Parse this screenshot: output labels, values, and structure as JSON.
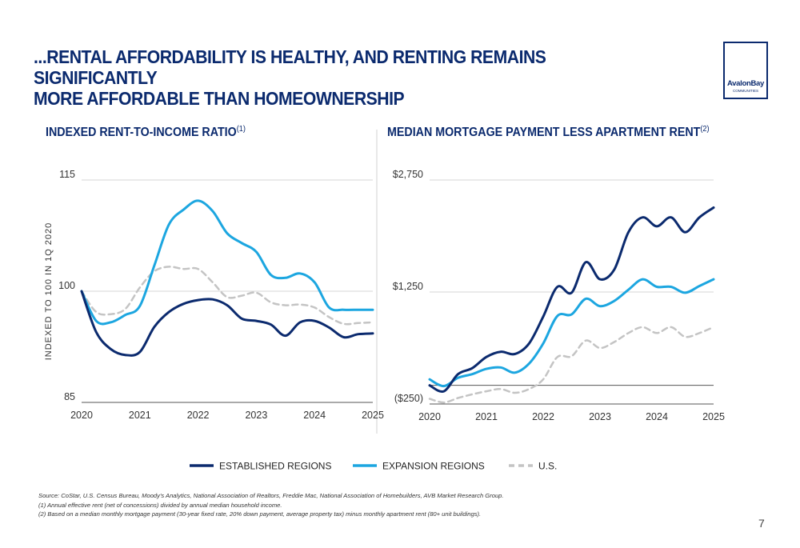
{
  "title_line1": "...RENTAL AFFORDABILITY IS HEALTHY, AND RENTING REMAINS SIGNIFICANTLY",
  "title_line2": "MORE AFFORDABLE THAN HOMEOWNERSHIP",
  "logo": {
    "name": "AvalonBay",
    "sub": "COMMUNITIES"
  },
  "legend": [
    {
      "label": "ESTABLISHED REGIONS",
      "color": "#0b2a6e",
      "dash": false
    },
    {
      "label": "EXPANSION REGIONS",
      "color": "#1ca6e0",
      "dash": false
    },
    {
      "label": "U.S.",
      "color": "#c4c4c4",
      "dash": true
    }
  ],
  "chart_data": [
    {
      "type": "line",
      "title": "INDEXED RENT-TO-INCOME RATIO",
      "title_note": "(1)",
      "ylabel": "INDEXED TO 100 IN 1Q 2020",
      "ylim": [
        85,
        115
      ],
      "yticks": [
        "85",
        "100",
        "115"
      ],
      "xlim": [
        2020,
        2025
      ],
      "xticks": [
        "2020",
        "2021",
        "2022",
        "2023",
        "2024",
        "2025"
      ],
      "grid": "horizontal",
      "series": [
        {
          "name": "ESTABLISHED REGIONS",
          "color": "#0b2a6e",
          "dash": false,
          "x": [
            2020,
            2020.25,
            2020.5,
            2020.75,
            2021,
            2021.25,
            2021.5,
            2021.75,
            2022,
            2022.25,
            2022.5,
            2022.75,
            2023,
            2023.25,
            2023.5,
            2023.75,
            2024,
            2024.25,
            2024.5,
            2024.75,
            2025
          ],
          "y": [
            100,
            94.5,
            92.2,
            91.4,
            91.8,
            95.2,
            97.2,
            98.3,
            98.8,
            98.9,
            98.1,
            96.3,
            96.0,
            95.5,
            94.0,
            95.8,
            96.0,
            95.1,
            93.8,
            94.2,
            94.3
          ]
        },
        {
          "name": "EXPANSION REGIONS",
          "color": "#1ca6e0",
          "dash": false,
          "x": [
            2020,
            2020.25,
            2020.5,
            2020.75,
            2021,
            2021.25,
            2021.5,
            2021.75,
            2022,
            2022.25,
            2022.5,
            2022.75,
            2023,
            2023.25,
            2023.5,
            2023.75,
            2024,
            2024.25,
            2024.5,
            2024.75,
            2025
          ],
          "y": [
            100,
            96.0,
            95.8,
            96.8,
            98.0,
            103.5,
            109.0,
            111.0,
            112.2,
            110.8,
            107.8,
            106.5,
            105.3,
            102.2,
            101.8,
            102.4,
            101.2,
            97.8,
            97.5,
            97.5,
            97.5
          ]
        },
        {
          "name": "U.S.",
          "color": "#c4c4c4",
          "dash": true,
          "x": [
            2020,
            2020.25,
            2020.5,
            2020.75,
            2021,
            2021.25,
            2021.5,
            2021.75,
            2022,
            2022.25,
            2022.5,
            2022.75,
            2023,
            2023.25,
            2023.5,
            2023.75,
            2024,
            2024.25,
            2024.5,
            2024.75,
            2025
          ],
          "y": [
            100,
            97.2,
            96.9,
            97.6,
            100.5,
            102.7,
            103.3,
            103.0,
            103.0,
            101.2,
            99.2,
            99.4,
            99.8,
            98.5,
            98.1,
            98.2,
            97.8,
            96.5,
            95.6,
            95.7,
            95.8
          ]
        }
      ]
    },
    {
      "type": "line",
      "title": "MEDIAN MORTGAGE PAYMENT LESS APARTMENT RENT",
      "title_note": "(2)",
      "ylim": [
        -250,
        2750
      ],
      "yticks": [
        "($250)",
        "$1,250",
        "$2,750"
      ],
      "ytick_values": [
        -250,
        1250,
        2750
      ],
      "xlim": [
        2020,
        2025
      ],
      "xticks": [
        "2020",
        "2021",
        "2022",
        "2023",
        "2024",
        "2025"
      ],
      "grid": "horizontal",
      "zero_line": true,
      "series": [
        {
          "name": "ESTABLISHED REGIONS",
          "color": "#0b2a6e",
          "dash": false,
          "x": [
            2020,
            2020.25,
            2020.5,
            2020.75,
            2021,
            2021.25,
            2021.5,
            2021.75,
            2022,
            2022.25,
            2022.5,
            2022.75,
            2023,
            2023.25,
            2023.5,
            2023.75,
            2024,
            2024.25,
            2024.5,
            2024.75,
            2025
          ],
          "y": [
            0,
            -80,
            150,
            230,
            380,
            450,
            420,
            560,
            920,
            1320,
            1240,
            1650,
            1420,
            1550,
            2050,
            2250,
            2130,
            2250,
            2050,
            2250,
            2380
          ]
        },
        {
          "name": "EXPANSION REGIONS",
          "color": "#1ca6e0",
          "dash": false,
          "x": [
            2020,
            2020.25,
            2020.5,
            2020.75,
            2021,
            2021.25,
            2021.5,
            2021.75,
            2022,
            2022.25,
            2022.5,
            2022.75,
            2023,
            2023.25,
            2023.5,
            2023.75,
            2024,
            2024.25,
            2024.5,
            2024.75,
            2025
          ],
          "y": [
            80,
            -10,
            100,
            150,
            220,
            240,
            170,
            290,
            560,
            930,
            950,
            1160,
            1060,
            1130,
            1280,
            1420,
            1320,
            1320,
            1240,
            1330,
            1420
          ]
        },
        {
          "name": "U.S.",
          "color": "#c4c4c4",
          "dash": true,
          "x": [
            2020,
            2020.25,
            2020.5,
            2020.75,
            2021,
            2021.25,
            2021.5,
            2021.75,
            2022,
            2022.25,
            2022.5,
            2022.75,
            2023,
            2023.25,
            2023.5,
            2023.75,
            2024,
            2024.25,
            2024.5,
            2024.75,
            2025
          ],
          "y": [
            -180,
            -230,
            -170,
            -120,
            -80,
            -50,
            -100,
            -50,
            80,
            380,
            390,
            600,
            500,
            580,
            700,
            780,
            700,
            780,
            650,
            700,
            780
          ]
        }
      ]
    }
  ],
  "footnotes": [
    "Source:  CoStar, U.S. Census Bureau, Moody's Analytics, National Association of Realtors, Freddie Mac, National Association of Homebuilders, AVB Market Research Group.",
    "(1)     Annual effective rent (net of concessions) divided by annual median household income.",
    "(2)     Based on a median monthly mortgage payment (30-year fixed rate, 20% down payment, average property tax) minus monthly apartment rent (80+ unit buildings)."
  ],
  "page_number": "7"
}
